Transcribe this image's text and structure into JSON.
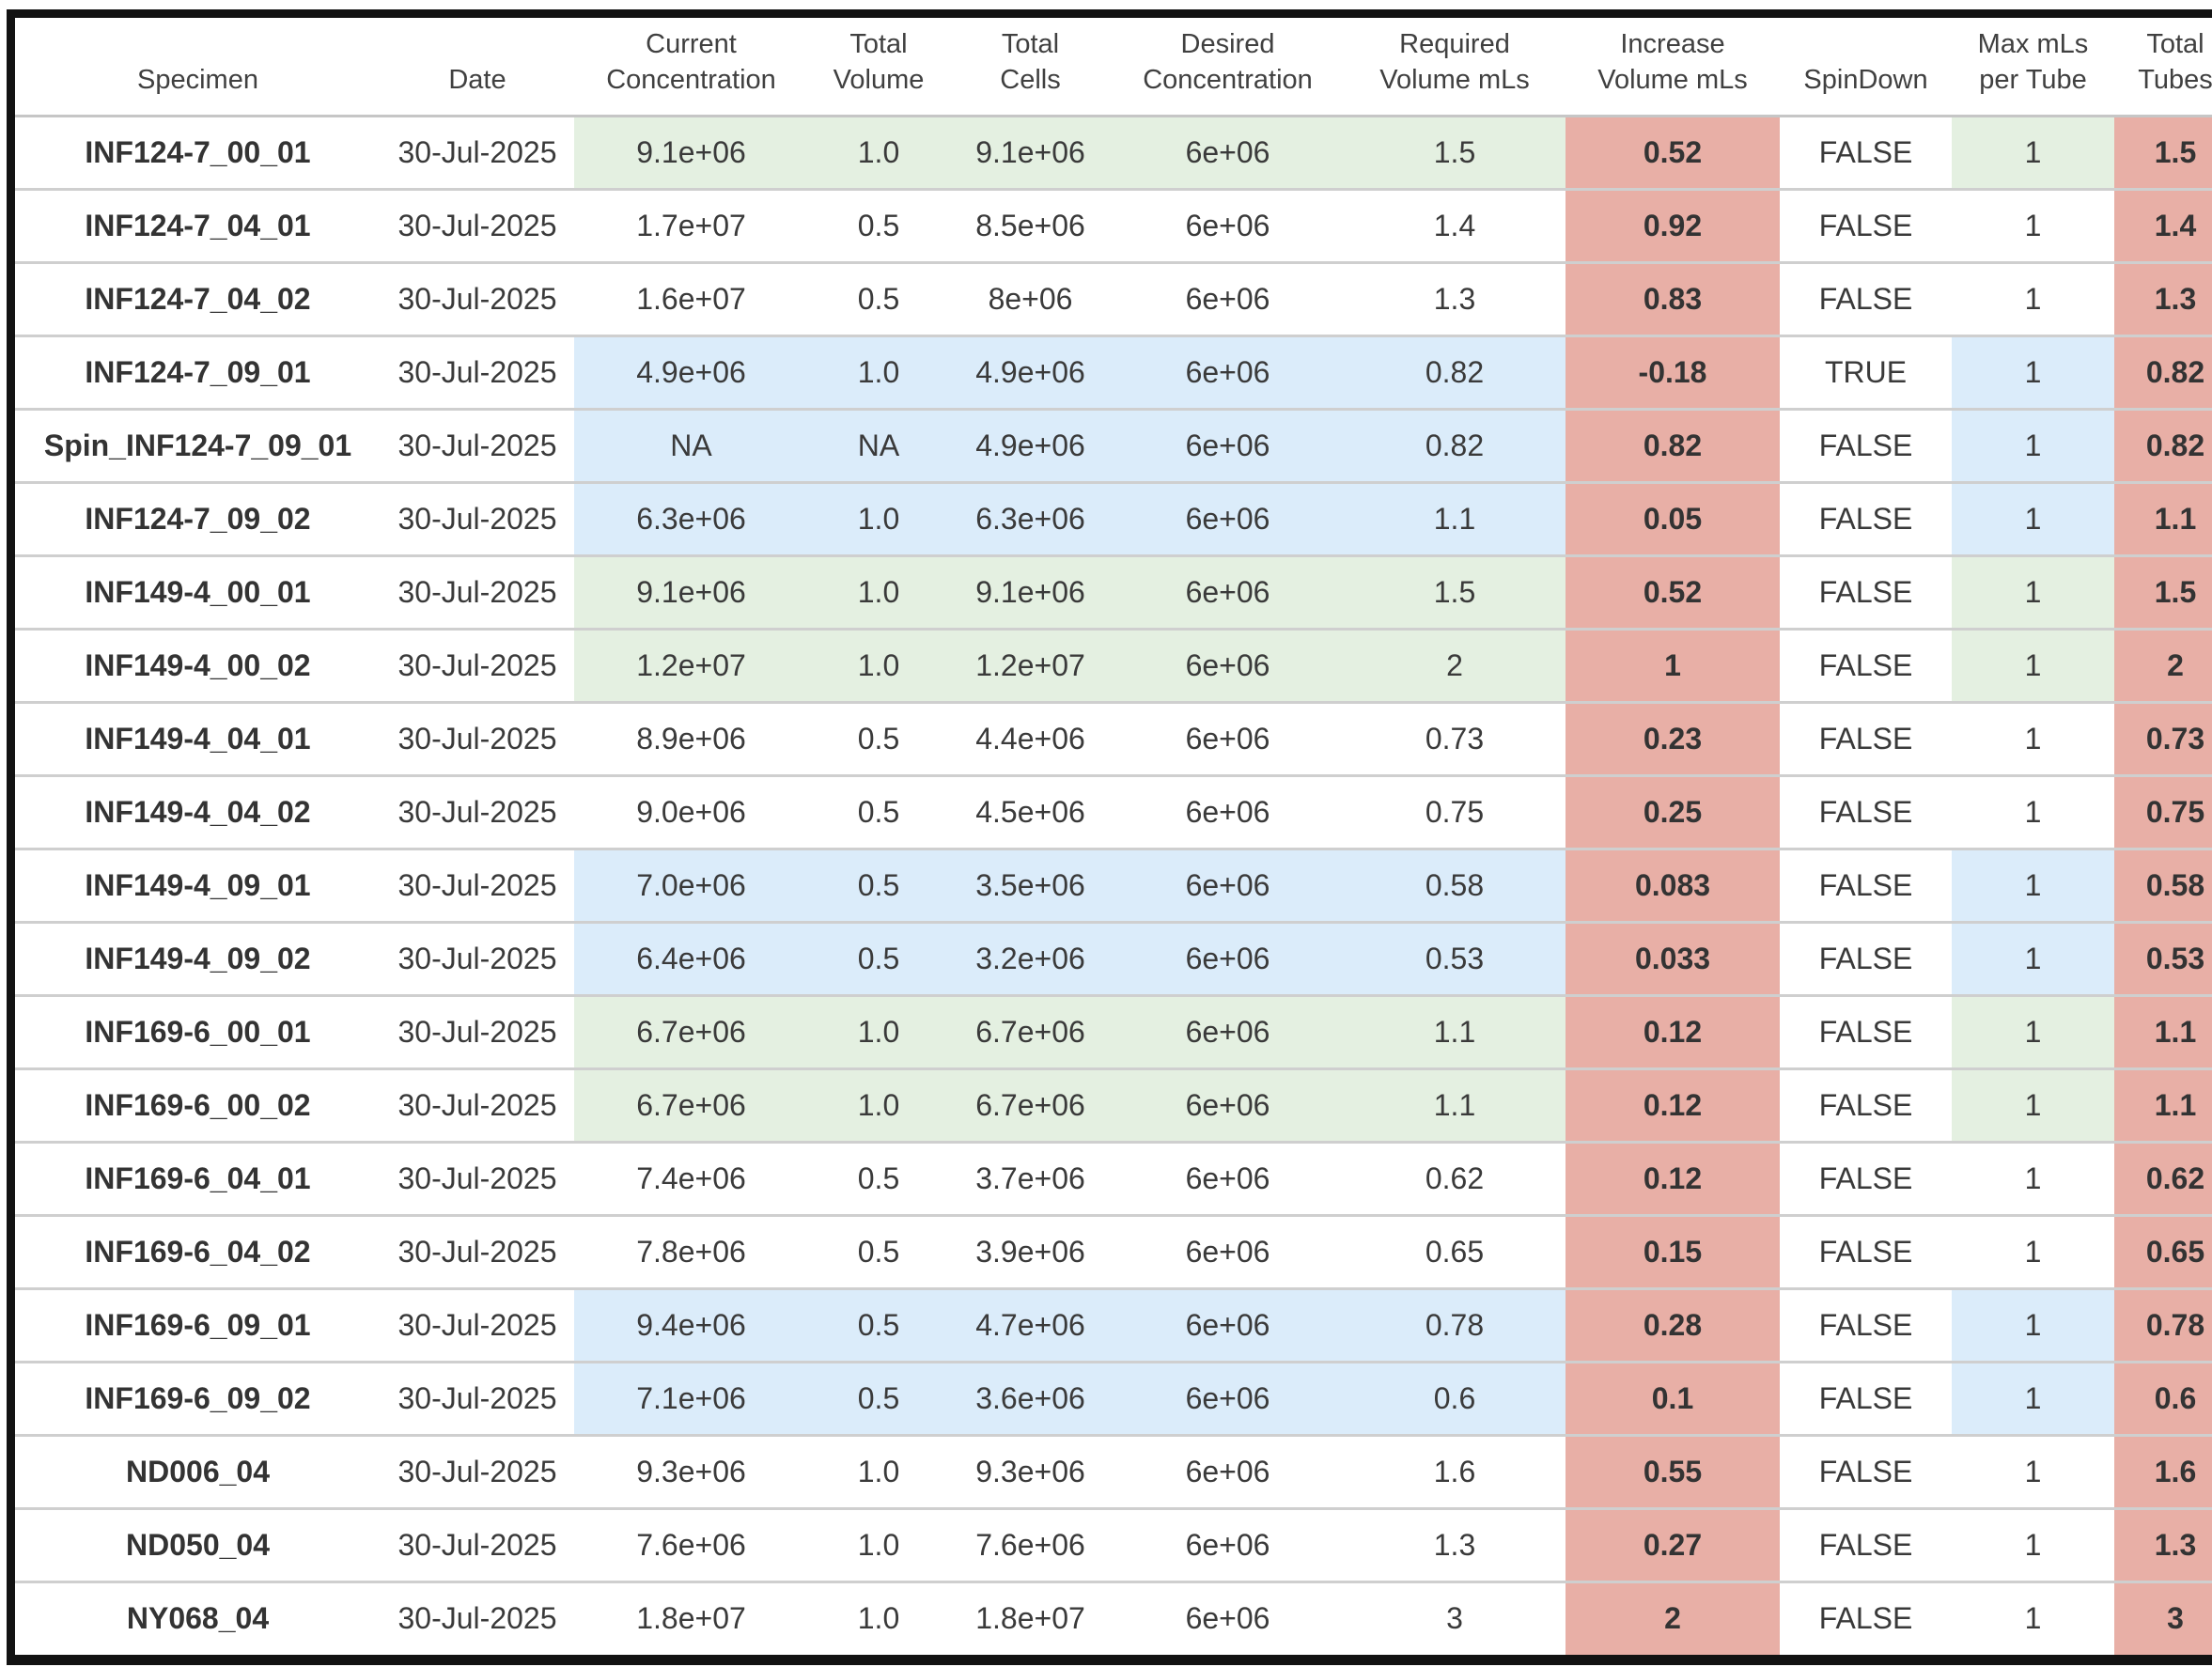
{
  "chart_data": {
    "type": "table",
    "title": "",
    "colors": {
      "group_green": "#e4f0e1",
      "group_blue": "#dbecfa",
      "flag_salmon": "#e8afa6",
      "frame_black": "#121212",
      "separator_gray": "#cfcfcf",
      "text_dark": "#3a3a3a"
    },
    "columns": [
      {
        "id": "specimen",
        "label": "Specimen",
        "fill": "plain",
        "bold": true
      },
      {
        "id": "date",
        "label": "Date",
        "fill": "plain",
        "bold": false
      },
      {
        "id": "current_concentration",
        "label": "Current\nConcentration",
        "fill": "group",
        "bold": false
      },
      {
        "id": "total_volume",
        "label": "Total\nVolume",
        "fill": "group",
        "bold": false
      },
      {
        "id": "total_cells",
        "label": "Total\nCells",
        "fill": "group",
        "bold": false
      },
      {
        "id": "desired_concentration",
        "label": "Desired\nConcentration",
        "fill": "group",
        "bold": false
      },
      {
        "id": "required_volume_mls",
        "label": "Required\nVolume mLs",
        "fill": "group",
        "bold": false
      },
      {
        "id": "increase_volume_mls",
        "label": "Increase\nVolume mLs",
        "fill": "salmon",
        "bold": true
      },
      {
        "id": "spindown",
        "label": "SpinDown",
        "fill": "plain",
        "bold": false
      },
      {
        "id": "max_mls_per_tube",
        "label": "Max mLs\nper Tube",
        "fill": "group",
        "bold": false
      },
      {
        "id": "total_tubes",
        "label": "Total\nTubes",
        "fill": "salmon",
        "bold": true
      }
    ],
    "rows": [
      {
        "group": "green",
        "specimen": "INF124-7_00_01",
        "date": "30-Jul-2025",
        "current_concentration": "9.1e+06",
        "total_volume": "1.0",
        "total_cells": "9.1e+06",
        "desired_concentration": "6e+06",
        "required_volume_mls": "1.5",
        "increase_volume_mls": "0.52",
        "spindown": "FALSE",
        "max_mls_per_tube": "1",
        "total_tubes": "1.5"
      },
      {
        "group": "white",
        "specimen": "INF124-7_04_01",
        "date": "30-Jul-2025",
        "current_concentration": "1.7e+07",
        "total_volume": "0.5",
        "total_cells": "8.5e+06",
        "desired_concentration": "6e+06",
        "required_volume_mls": "1.4",
        "increase_volume_mls": "0.92",
        "spindown": "FALSE",
        "max_mls_per_tube": "1",
        "total_tubes": "1.4"
      },
      {
        "group": "white",
        "specimen": "INF124-7_04_02",
        "date": "30-Jul-2025",
        "current_concentration": "1.6e+07",
        "total_volume": "0.5",
        "total_cells": "8e+06",
        "desired_concentration": "6e+06",
        "required_volume_mls": "1.3",
        "increase_volume_mls": "0.83",
        "spindown": "FALSE",
        "max_mls_per_tube": "1",
        "total_tubes": "1.3"
      },
      {
        "group": "blue",
        "specimen": "INF124-7_09_01",
        "date": "30-Jul-2025",
        "current_concentration": "4.9e+06",
        "total_volume": "1.0",
        "total_cells": "4.9e+06",
        "desired_concentration": "6e+06",
        "required_volume_mls": "0.82",
        "increase_volume_mls": "-0.18",
        "spindown": "TRUE",
        "max_mls_per_tube": "1",
        "total_tubes": "0.82"
      },
      {
        "group": "blue",
        "specimen": "Spin_INF124-7_09_01",
        "date": "30-Jul-2025",
        "current_concentration": "NA",
        "total_volume": "NA",
        "total_cells": "4.9e+06",
        "desired_concentration": "6e+06",
        "required_volume_mls": "0.82",
        "increase_volume_mls": "0.82",
        "spindown": "FALSE",
        "max_mls_per_tube": "1",
        "total_tubes": "0.82"
      },
      {
        "group": "blue",
        "specimen": "INF124-7_09_02",
        "date": "30-Jul-2025",
        "current_concentration": "6.3e+06",
        "total_volume": "1.0",
        "total_cells": "6.3e+06",
        "desired_concentration": "6e+06",
        "required_volume_mls": "1.1",
        "increase_volume_mls": "0.05",
        "spindown": "FALSE",
        "max_mls_per_tube": "1",
        "total_tubes": "1.1"
      },
      {
        "group": "green",
        "specimen": "INF149-4_00_01",
        "date": "30-Jul-2025",
        "current_concentration": "9.1e+06",
        "total_volume": "1.0",
        "total_cells": "9.1e+06",
        "desired_concentration": "6e+06",
        "required_volume_mls": "1.5",
        "increase_volume_mls": "0.52",
        "spindown": "FALSE",
        "max_mls_per_tube": "1",
        "total_tubes": "1.5"
      },
      {
        "group": "green",
        "specimen": "INF149-4_00_02",
        "date": "30-Jul-2025",
        "current_concentration": "1.2e+07",
        "total_volume": "1.0",
        "total_cells": "1.2e+07",
        "desired_concentration": "6e+06",
        "required_volume_mls": "2",
        "increase_volume_mls": "1",
        "spindown": "FALSE",
        "max_mls_per_tube": "1",
        "total_tubes": "2"
      },
      {
        "group": "white",
        "specimen": "INF149-4_04_01",
        "date": "30-Jul-2025",
        "current_concentration": "8.9e+06",
        "total_volume": "0.5",
        "total_cells": "4.4e+06",
        "desired_concentration": "6e+06",
        "required_volume_mls": "0.73",
        "increase_volume_mls": "0.23",
        "spindown": "FALSE",
        "max_mls_per_tube": "1",
        "total_tubes": "0.73"
      },
      {
        "group": "white",
        "specimen": "INF149-4_04_02",
        "date": "30-Jul-2025",
        "current_concentration": "9.0e+06",
        "total_volume": "0.5",
        "total_cells": "4.5e+06",
        "desired_concentration": "6e+06",
        "required_volume_mls": "0.75",
        "increase_volume_mls": "0.25",
        "spindown": "FALSE",
        "max_mls_per_tube": "1",
        "total_tubes": "0.75"
      },
      {
        "group": "blue",
        "specimen": "INF149-4_09_01",
        "date": "30-Jul-2025",
        "current_concentration": "7.0e+06",
        "total_volume": "0.5",
        "total_cells": "3.5e+06",
        "desired_concentration": "6e+06",
        "required_volume_mls": "0.58",
        "increase_volume_mls": "0.083",
        "spindown": "FALSE",
        "max_mls_per_tube": "1",
        "total_tubes": "0.58"
      },
      {
        "group": "blue",
        "specimen": "INF149-4_09_02",
        "date": "30-Jul-2025",
        "current_concentration": "6.4e+06",
        "total_volume": "0.5",
        "total_cells": "3.2e+06",
        "desired_concentration": "6e+06",
        "required_volume_mls": "0.53",
        "increase_volume_mls": "0.033",
        "spindown": "FALSE",
        "max_mls_per_tube": "1",
        "total_tubes": "0.53"
      },
      {
        "group": "green",
        "specimen": "INF169-6_00_01",
        "date": "30-Jul-2025",
        "current_concentration": "6.7e+06",
        "total_volume": "1.0",
        "total_cells": "6.7e+06",
        "desired_concentration": "6e+06",
        "required_volume_mls": "1.1",
        "increase_volume_mls": "0.12",
        "spindown": "FALSE",
        "max_mls_per_tube": "1",
        "total_tubes": "1.1"
      },
      {
        "group": "green",
        "specimen": "INF169-6_00_02",
        "date": "30-Jul-2025",
        "current_concentration": "6.7e+06",
        "total_volume": "1.0",
        "total_cells": "6.7e+06",
        "desired_concentration": "6e+06",
        "required_volume_mls": "1.1",
        "increase_volume_mls": "0.12",
        "spindown": "FALSE",
        "max_mls_per_tube": "1",
        "total_tubes": "1.1"
      },
      {
        "group": "white",
        "specimen": "INF169-6_04_01",
        "date": "30-Jul-2025",
        "current_concentration": "7.4e+06",
        "total_volume": "0.5",
        "total_cells": "3.7e+06",
        "desired_concentration": "6e+06",
        "required_volume_mls": "0.62",
        "increase_volume_mls": "0.12",
        "spindown": "FALSE",
        "max_mls_per_tube": "1",
        "total_tubes": "0.62"
      },
      {
        "group": "white",
        "specimen": "INF169-6_04_02",
        "date": "30-Jul-2025",
        "current_concentration": "7.8e+06",
        "total_volume": "0.5",
        "total_cells": "3.9e+06",
        "desired_concentration": "6e+06",
        "required_volume_mls": "0.65",
        "increase_volume_mls": "0.15",
        "spindown": "FALSE",
        "max_mls_per_tube": "1",
        "total_tubes": "0.65"
      },
      {
        "group": "blue",
        "specimen": "INF169-6_09_01",
        "date": "30-Jul-2025",
        "current_concentration": "9.4e+06",
        "total_volume": "0.5",
        "total_cells": "4.7e+06",
        "desired_concentration": "6e+06",
        "required_volume_mls": "0.78",
        "increase_volume_mls": "0.28",
        "spindown": "FALSE",
        "max_mls_per_tube": "1",
        "total_tubes": "0.78"
      },
      {
        "group": "blue",
        "specimen": "INF169-6_09_02",
        "date": "30-Jul-2025",
        "current_concentration": "7.1e+06",
        "total_volume": "0.5",
        "total_cells": "3.6e+06",
        "desired_concentration": "6e+06",
        "required_volume_mls": "0.6",
        "increase_volume_mls": "0.1",
        "spindown": "FALSE",
        "max_mls_per_tube": "1",
        "total_tubes": "0.6"
      },
      {
        "group": "white",
        "specimen": "ND006_04",
        "date": "30-Jul-2025",
        "current_concentration": "9.3e+06",
        "total_volume": "1.0",
        "total_cells": "9.3e+06",
        "desired_concentration": "6e+06",
        "required_volume_mls": "1.6",
        "increase_volume_mls": "0.55",
        "spindown": "FALSE",
        "max_mls_per_tube": "1",
        "total_tubes": "1.6"
      },
      {
        "group": "white",
        "specimen": "ND050_04",
        "date": "30-Jul-2025",
        "current_concentration": "7.6e+06",
        "total_volume": "1.0",
        "total_cells": "7.6e+06",
        "desired_concentration": "6e+06",
        "required_volume_mls": "1.3",
        "increase_volume_mls": "0.27",
        "spindown": "FALSE",
        "max_mls_per_tube": "1",
        "total_tubes": "1.3"
      },
      {
        "group": "white",
        "specimen": "NY068_04",
        "date": "30-Jul-2025",
        "current_concentration": "1.8e+07",
        "total_volume": "1.0",
        "total_cells": "1.8e+07",
        "desired_concentration": "6e+06",
        "required_volume_mls": "3",
        "increase_volume_mls": "2",
        "spindown": "FALSE",
        "max_mls_per_tube": "1",
        "total_tubes": "3"
      }
    ]
  }
}
